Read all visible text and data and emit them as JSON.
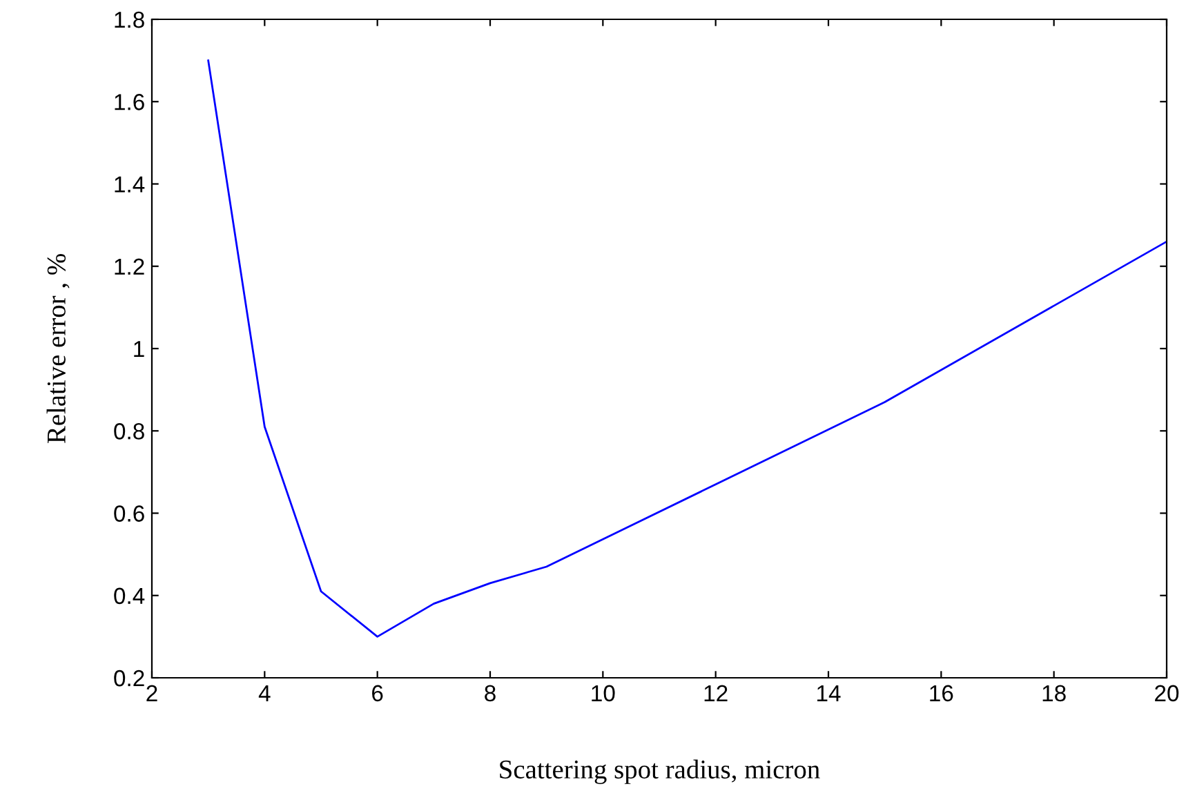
{
  "chart_data": {
    "type": "line",
    "xlabel": "Scattering spot radius, micron",
    "ylabel": "Relative error , %",
    "x": [
      3,
      4,
      5,
      6,
      7,
      8,
      9,
      12,
      15,
      20
    ],
    "series": [
      {
        "color": "#0000ff",
        "values": [
          1.7,
          0.81,
          0.41,
          0.3,
          0.38,
          0.43,
          0.47,
          0.67,
          0.87,
          1.26
        ]
      }
    ],
    "xlim": [
      2,
      20
    ],
    "xticks": [
      2,
      4,
      6,
      8,
      10,
      12,
      14,
      16,
      18,
      20
    ],
    "ylim": [
      0.2,
      1.8
    ],
    "yticks": [
      0.2,
      0.4,
      0.6,
      0.8,
      1,
      1.2,
      1.4,
      1.6,
      1.8
    ],
    "grid": false,
    "legend": false,
    "marker": "none",
    "line_style": "solid"
  }
}
